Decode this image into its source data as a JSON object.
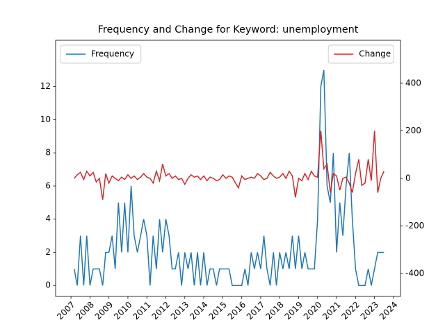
{
  "chart_data": {
    "type": "line",
    "title": "Frequency and Change for Keyword: unemployment",
    "x": [
      2007.17,
      2007.33,
      2007.5,
      2007.67,
      2007.83,
      2008.0,
      2008.17,
      2008.33,
      2008.5,
      2008.67,
      2008.83,
      2009.0,
      2009.17,
      2009.33,
      2009.5,
      2009.67,
      2009.83,
      2010.0,
      2010.17,
      2010.33,
      2010.5,
      2010.67,
      2010.83,
      2011.0,
      2011.17,
      2011.33,
      2011.5,
      2011.67,
      2011.83,
      2012.0,
      2012.17,
      2012.33,
      2012.5,
      2012.67,
      2012.83,
      2013.0,
      2013.17,
      2013.33,
      2013.5,
      2013.67,
      2013.83,
      2014.0,
      2014.17,
      2014.33,
      2014.5,
      2014.67,
      2014.83,
      2015.0,
      2015.17,
      2015.33,
      2015.5,
      2015.67,
      2015.83,
      2016.0,
      2016.17,
      2016.33,
      2016.5,
      2016.67,
      2016.83,
      2017.0,
      2017.17,
      2017.33,
      2017.5,
      2017.67,
      2017.83,
      2018.0,
      2018.17,
      2018.33,
      2018.5,
      2018.67,
      2018.83,
      2019.0,
      2019.17,
      2019.33,
      2019.5,
      2019.67,
      2019.83,
      2020.0,
      2020.17,
      2020.33,
      2020.5,
      2020.67,
      2020.83,
      2021.0,
      2021.17,
      2021.33,
      2021.5,
      2021.67,
      2021.83,
      2022.0,
      2022.17,
      2022.33,
      2022.5,
      2022.67,
      2022.83,
      2023.0,
      2023.17,
      2023.33,
      2023.5
    ],
    "series": [
      {
        "name": "Frequency",
        "color": "#1f77b4",
        "axis": "y",
        "values": [
          1,
          0,
          3,
          0,
          3,
          0,
          1,
          1,
          1,
          0,
          2,
          2,
          3,
          1,
          5,
          2,
          5,
          2,
          6,
          3,
          2,
          3,
          4,
          3,
          0,
          3,
          1,
          4,
          2,
          4,
          3,
          1,
          1,
          2,
          0,
          2,
          1,
          2,
          0,
          2,
          0,
          2,
          0,
          1,
          1,
          0,
          1,
          1,
          1,
          1,
          0,
          0,
          0,
          0,
          1,
          0,
          2,
          1,
          2,
          1,
          3,
          1,
          0,
          2,
          0,
          2,
          1,
          2,
          1,
          3,
          1,
          3,
          1,
          2,
          1,
          1,
          1,
          4,
          12,
          13,
          6,
          5,
          8,
          2,
          5,
          3,
          6,
          8,
          4,
          1,
          0,
          0,
          0,
          1,
          0,
          1,
          2,
          2,
          2
        ]
      },
      {
        "name": "Change",
        "color": "#d62728",
        "axis": "y2",
        "values": [
          0,
          15,
          25,
          -5,
          30,
          10,
          25,
          -15,
          0,
          -90,
          20,
          -20,
          10,
          0,
          -10,
          5,
          -5,
          15,
          0,
          10,
          -5,
          5,
          20,
          5,
          0,
          -20,
          30,
          -10,
          60,
          10,
          20,
          0,
          10,
          -5,
          0,
          -25,
          0,
          15,
          5,
          10,
          -5,
          10,
          -10,
          5,
          0,
          -10,
          -5,
          15,
          0,
          10,
          5,
          -20,
          -40,
          10,
          -5,
          0,
          5,
          0,
          20,
          10,
          -5,
          0,
          25,
          10,
          0,
          5,
          20,
          0,
          30,
          10,
          -80,
          0,
          -10,
          20,
          -5,
          30,
          10,
          5,
          200,
          40,
          60,
          -60,
          20,
          10,
          -50,
          0,
          5,
          -20,
          -60,
          20,
          80,
          -30,
          -20,
          80,
          -10,
          200,
          -60,
          0,
          30
        ]
      }
    ],
    "xlim": [
      2006.19,
      2024.37
    ],
    "xticks": [
      2007,
      2008,
      2009,
      2010,
      2011,
      2012,
      2013,
      2014,
      2015,
      2016,
      2017,
      2018,
      2019,
      2020,
      2021,
      2022,
      2023,
      2024
    ],
    "ylim": [
      -0.66,
      14.79
    ],
    "yticks": [
      0,
      2,
      4,
      6,
      8,
      10,
      12
    ],
    "y2lim": [
      -497,
      581
    ],
    "y2ticks": [
      -400,
      -200,
      0,
      200,
      400
    ],
    "legend": [
      "upper left",
      "upper right"
    ]
  }
}
